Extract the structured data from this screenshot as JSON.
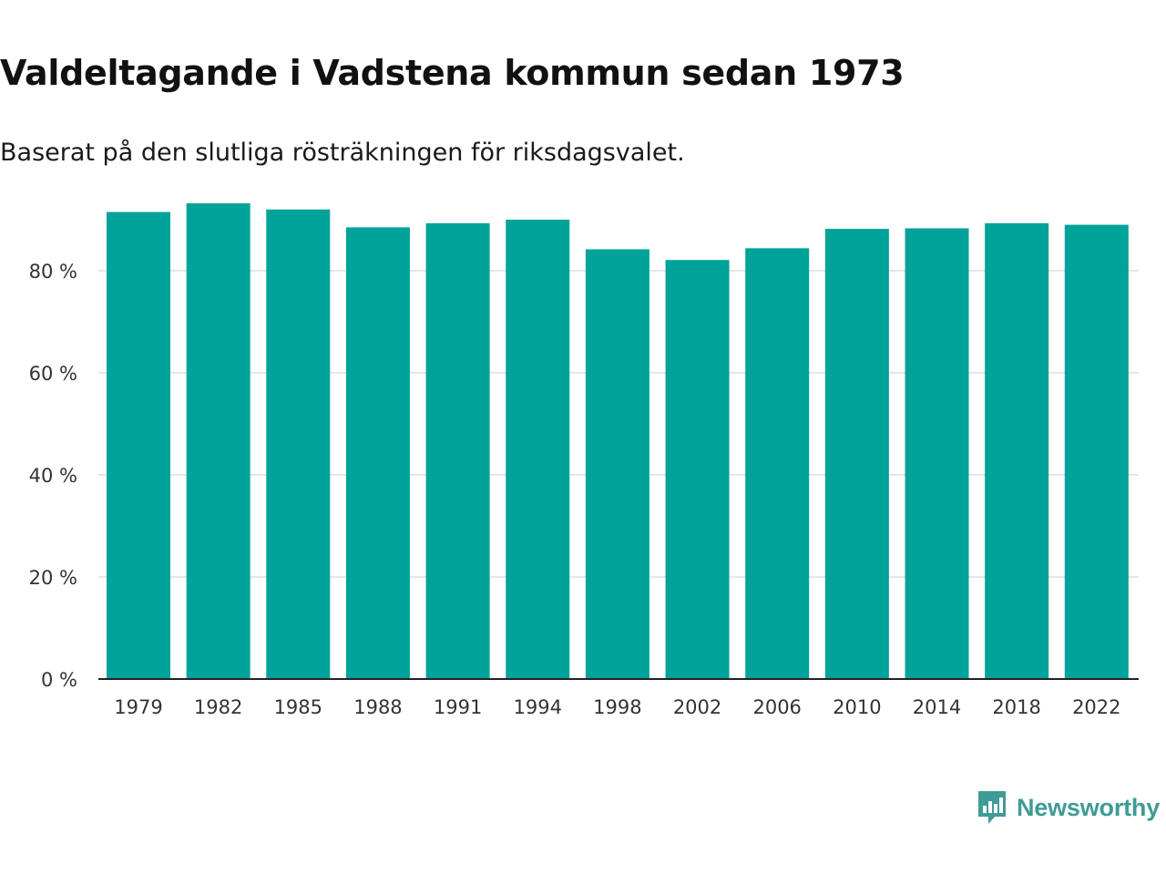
{
  "header": {
    "title": "Valdeltagande i Vadstena kommun sedan 1973",
    "subtitle": "Baserat på den slutliga rösträkningen för riksdagsvalet."
  },
  "branding": {
    "logo_text": "Newsworthy",
    "logo_icon": "bar-chart-speech-bubble-icon",
    "logo_color": "#3f9b96"
  },
  "colors": {
    "bar": "#00a39a",
    "grid": "#dddddd",
    "axis": "#222222",
    "tick_text": "#333333"
  },
  "chart_data": {
    "type": "bar",
    "categories": [
      "1979",
      "1982",
      "1985",
      "1988",
      "1991",
      "1994",
      "1998",
      "2002",
      "2006",
      "2010",
      "2014",
      "2018",
      "2022"
    ],
    "values": [
      91.5,
      93.2,
      92.0,
      88.5,
      89.3,
      90.0,
      84.2,
      82.1,
      84.4,
      88.2,
      88.3,
      89.3,
      89.0
    ],
    "ylim": [
      0,
      100
    ],
    "yticks": [
      0,
      20,
      40,
      60,
      80
    ],
    "ytick_labels": [
      "0 %",
      "20 %",
      "40 %",
      "60 %",
      "80 %"
    ],
    "grid": true,
    "title": "Valdeltagande i Vadstena kommun sedan 1973",
    "subtitle": "Baserat på den slutliga rösträkningen för riksdagsvalet.",
    "xlabel": "",
    "ylabel": ""
  }
}
